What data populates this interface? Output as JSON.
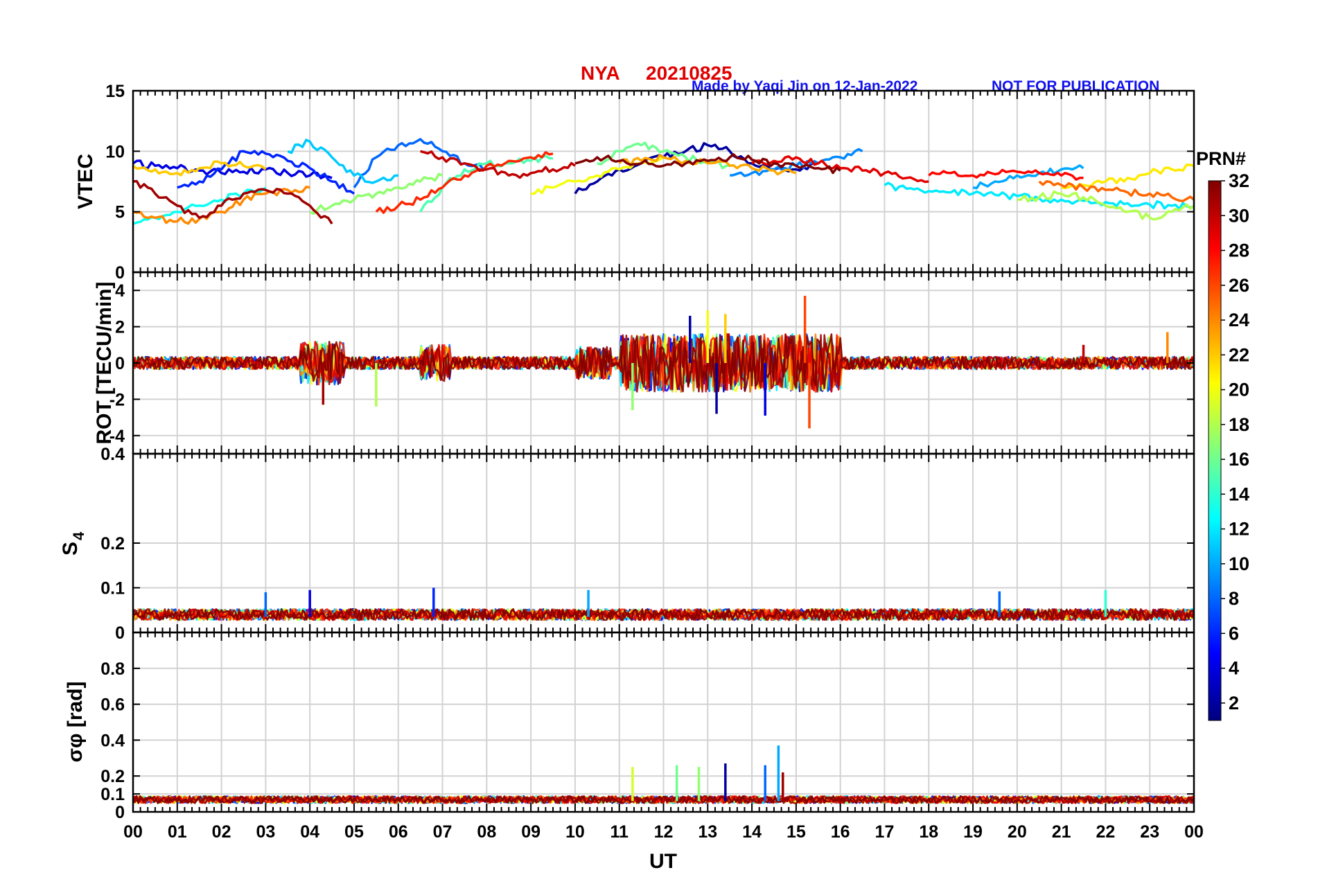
{
  "chart_data": {
    "type": "line",
    "station": "NYA",
    "date": "20210825",
    "credit": "Made by Yaqi Jin on 12-Jan-2022",
    "notice": "NOT FOR PUBLICATION",
    "xlabel": "UT",
    "xticks": [
      "00",
      "01",
      "02",
      "03",
      "04",
      "05",
      "06",
      "07",
      "08",
      "09",
      "10",
      "11",
      "12",
      "13",
      "14",
      "15",
      "16",
      "17",
      "18",
      "19",
      "20",
      "21",
      "22",
      "23",
      "00"
    ],
    "xlim": [
      0,
      24
    ],
    "colorbar": {
      "label": "PRN#",
      "ticks": [
        "2",
        "4",
        "6",
        "8",
        "10",
        "12",
        "14",
        "16",
        "18",
        "20",
        "22",
        "24",
        "26",
        "28",
        "30",
        "32"
      ],
      "range": [
        1,
        32
      ]
    },
    "panels": [
      {
        "id": "vtec",
        "ylabel": "VTEC",
        "ylim": [
          0,
          15
        ],
        "yticks": [
          0,
          5,
          10,
          15
        ],
        "ytick_labels": [
          "0",
          "5",
          "10",
          "15"
        ],
        "series": [
          {
            "prn": 2,
            "x": [
              10,
              10.5,
              11,
              11.5,
              12,
              12.5,
              13,
              13.5,
              14,
              14.5,
              15,
              15.5
            ],
            "y": [
              6.5,
              7.5,
              8.5,
              9,
              9.5,
              10,
              10.5,
              10,
              9,
              8.5,
              8.5,
              9
            ]
          },
          {
            "prn": 4,
            "x": [
              0,
              0.5,
              1,
              1.5,
              2,
              2.5,
              3,
              3.5,
              4,
              4.5
            ],
            "y": [
              9,
              8.8,
              8.6,
              8.4,
              8.2,
              8.3,
              8.5,
              8.2,
              8,
              7.8
            ]
          },
          {
            "prn": 6,
            "x": [
              1,
              1.5,
              2,
              2.5,
              3,
              3.5,
              4,
              4.5,
              5
            ],
            "y": [
              7,
              7.5,
              8.5,
              10,
              9.8,
              9.2,
              8.6,
              7.5,
              6.5
            ]
          },
          {
            "prn": 8,
            "x": [
              5,
              5.5,
              6,
              6.5,
              7,
              7.5,
              8
            ],
            "y": [
              7,
              9.5,
              10.5,
              11,
              10,
              9,
              8.5
            ]
          },
          {
            "prn": 9,
            "x": [
              13.5,
              14,
              14.5,
              15,
              15.5,
              16,
              16.5
            ],
            "y": [
              8,
              8.2,
              8.5,
              8.8,
              9,
              9.5,
              10
            ]
          },
          {
            "prn": 10,
            "x": [
              19,
              19.5,
              20,
              20.5,
              21,
              21.5
            ],
            "y": [
              7,
              7.5,
              8,
              8.2,
              8.5,
              8.6
            ]
          },
          {
            "prn": 11,
            "x": [
              3.5,
              4,
              4.5,
              5,
              5.5,
              6
            ],
            "y": [
              10,
              10.8,
              9.5,
              8,
              7.5,
              8
            ]
          },
          {
            "prn": 12,
            "x": [
              17,
              17.5,
              18,
              18.5,
              19,
              19.5,
              20,
              20.5,
              21,
              21.5,
              22,
              22.5,
              23,
              23.5,
              24
            ],
            "y": [
              7.2,
              6.9,
              6.7,
              6.6,
              6.5,
              6.4,
              6.3,
              6.1,
              6,
              5.9,
              5.8,
              5.7,
              5.6,
              5.5,
              5.4
            ]
          },
          {
            "prn": 13,
            "x": [
              0,
              0.5,
              1,
              1.5,
              2,
              2.5,
              3
            ],
            "y": [
              4,
              4.5,
              5,
              5.5,
              6,
              6.5,
              7
            ]
          },
          {
            "prn": 15,
            "x": [
              6.5,
              7,
              7.5,
              8,
              8.5,
              9,
              9.5
            ],
            "y": [
              5,
              7,
              8.5,
              9,
              9,
              9.2,
              9.4
            ]
          },
          {
            "prn": 16,
            "x": [
              10.5,
              11,
              11.5,
              12,
              12.5,
              13,
              13.5
            ],
            "y": [
              9,
              10,
              10.5,
              10,
              9.5,
              9,
              8.8
            ]
          },
          {
            "prn": 17,
            "x": [
              4,
              4.5,
              5,
              5.5,
              6,
              6.5,
              7
            ],
            "y": [
              5,
              5.5,
              6,
              6.5,
              7,
              7.5,
              8
            ]
          },
          {
            "prn": 18,
            "x": [
              20,
              20.5,
              21,
              21.5,
              22,
              22.5,
              23,
              23.5,
              24
            ],
            "y": [
              6,
              6.2,
              6.5,
              6.2,
              5.5,
              5,
              4.5,
              5,
              5.5
            ]
          },
          {
            "prn": 20,
            "x": [
              9,
              9.5,
              10,
              10.5,
              11,
              11.5,
              12
            ],
            "y": [
              6.5,
              7,
              7.5,
              8,
              8.5,
              9,
              9.5
            ]
          },
          {
            "prn": 21,
            "x": [
              21,
              21.5,
              22,
              22.5,
              23,
              23.5,
              24
            ],
            "y": [
              7,
              7.2,
              7.5,
              7.8,
              8.2,
              8.5,
              8.8
            ]
          },
          {
            "prn": 22,
            "x": [
              0,
              0.5,
              1,
              1.5,
              2,
              2.5,
              3
            ],
            "y": [
              8.8,
              8.5,
              8.2,
              8.6,
              9,
              8.8,
              8.5
            ]
          },
          {
            "prn": 23,
            "x": [
              11,
              11.5,
              12,
              12.5,
              13,
              13.5,
              14,
              14.5,
              15
            ],
            "y": [
              9,
              9.2,
              9.5,
              9.2,
              9,
              8.8,
              8.6,
              8.4,
              8.2
            ]
          },
          {
            "prn": 24,
            "x": [
              0,
              0.5,
              1,
              1.5,
              2,
              2.5,
              3,
              3.5,
              4
            ],
            "y": [
              5,
              4.5,
              4.2,
              4.4,
              5,
              6,
              6.5,
              6.8,
              7
            ]
          },
          {
            "prn": 25,
            "x": [
              20.5,
              21,
              21.5,
              22,
              22.5,
              23,
              23.5,
              24
            ],
            "y": [
              7.5,
              7.2,
              7,
              6.8,
              6.6,
              6.5,
              6.2,
              6
            ]
          },
          {
            "prn": 27,
            "x": [
              5.5,
              6,
              6.5,
              7,
              7.5,
              8,
              8.5,
              9,
              9.5
            ],
            "y": [
              5,
              5.5,
              6,
              7,
              8,
              8.8,
              9.2,
              9.5,
              9.8
            ]
          },
          {
            "prn": 28,
            "x": [
              18,
              18.5,
              19,
              19.5,
              20,
              20.5,
              21,
              21.5
            ],
            "y": [
              8,
              8.2,
              8,
              8.1,
              8.3,
              8.2,
              8,
              7.8
            ]
          },
          {
            "prn": 29,
            "x": [
              14,
              14.5,
              15,
              15.5,
              16,
              16.5,
              17,
              17.5,
              18
            ],
            "y": [
              9,
              9.2,
              9.5,
              9,
              8.6,
              8.4,
              8.2,
              7.8,
              7.5
            ]
          },
          {
            "prn": 30,
            "x": [
              6.5,
              7,
              7.5,
              8,
              8.5,
              9,
              9.5,
              10
            ],
            "y": [
              10,
              9.5,
              9,
              8.5,
              8,
              8.2,
              8.5,
              8.8
            ]
          },
          {
            "prn": 31,
            "x": [
              0,
              0.5,
              1,
              1.5,
              2,
              2.5,
              3,
              3.5,
              4,
              4.5
            ],
            "y": [
              7.5,
              6.5,
              5.5,
              4.5,
              5.5,
              6.5,
              6.8,
              6.5,
              5.5,
              4
            ]
          },
          {
            "prn": 32,
            "x": [
              10,
              10.5,
              11,
              11.5,
              12,
              12.5,
              13,
              13.5,
              14,
              14.5,
              15,
              15.5,
              16
            ],
            "y": [
              9,
              9.5,
              9.2,
              9,
              8.8,
              9,
              9.2,
              9.5,
              9.3,
              9,
              8.8,
              8.6,
              8.4
            ]
          }
        ]
      },
      {
        "id": "rot",
        "ylabel": "ROT [TECU/min]",
        "ylim": [
          -5,
          5
        ],
        "yticks": [
          -4,
          -2,
          0,
          2,
          4
        ],
        "ytick_labels": [
          "-4",
          "-2",
          "0",
          "2",
          "4"
        ],
        "noise": {
          "base_amplitude": 0.35,
          "active_windows": [
            [
              3.8,
              4.8,
              1.2
            ],
            [
              6.5,
              7.2,
              1.0
            ],
            [
              10.0,
              10.8,
              0.9
            ],
            [
              11.0,
              16.0,
              1.6
            ]
          ]
        },
        "spikes": [
          {
            "prn": 2,
            "x": 12.6,
            "y": 2.6
          },
          {
            "prn": 2,
            "x": 13.2,
            "y": -2.8
          },
          {
            "prn": 4,
            "x": 14.3,
            "y": -2.9
          },
          {
            "prn": 20,
            "x": 13.0,
            "y": 2.9
          },
          {
            "prn": 22,
            "x": 13.4,
            "y": 2.7
          },
          {
            "prn": 17,
            "x": 11.3,
            "y": -2.6
          },
          {
            "prn": 18,
            "x": 5.5,
            "y": -2.4
          },
          {
            "prn": 26,
            "x": 15.2,
            "y": 3.7
          },
          {
            "prn": 26,
            "x": 15.3,
            "y": -3.6
          },
          {
            "prn": 31,
            "x": 4.3,
            "y": -2.3
          },
          {
            "prn": 24,
            "x": 23.4,
            "y": 1.7
          },
          {
            "prn": 30,
            "x": 21.5,
            "y": 1.0
          }
        ]
      },
      {
        "id": "s4",
        "ylabel": "S4",
        "ylim": [
          0,
          0.4
        ],
        "yticks": [
          0,
          0.1,
          0.2,
          0.4
        ],
        "ytick_labels": [
          "0",
          "0.1",
          "0.2",
          "0.4"
        ],
        "noise": {
          "base_level": 0.035,
          "base_amplitude": 0.025
        },
        "spikes": [
          {
            "prn": 8,
            "x": 3.0,
            "y": 0.09
          },
          {
            "prn": 4,
            "x": 4.0,
            "y": 0.095
          },
          {
            "prn": 6,
            "x": 6.8,
            "y": 0.1
          },
          {
            "prn": 10,
            "x": 10.3,
            "y": 0.095
          },
          {
            "prn": 8,
            "x": 19.6,
            "y": 0.092
          },
          {
            "prn": 14,
            "x": 22.0,
            "y": 0.095
          }
        ]
      },
      {
        "id": "sigma_phi",
        "ylabel": "σφ [rad]",
        "ylim": [
          0,
          1
        ],
        "yticks": [
          0,
          0.1,
          0.2,
          0.4,
          0.6,
          0.8
        ],
        "ytick_labels": [
          "0",
          "0.1",
          "0.2",
          "0.4",
          "0.6",
          "0.8"
        ],
        "noise": {
          "base_level": 0.06,
          "base_amplitude": 0.04
        },
        "spikes": [
          {
            "prn": 19,
            "x": 11.3,
            "y": 0.25
          },
          {
            "prn": 16,
            "x": 12.3,
            "y": 0.26
          },
          {
            "prn": 17,
            "x": 12.8,
            "y": 0.25
          },
          {
            "prn": 2,
            "x": 13.4,
            "y": 0.27
          },
          {
            "prn": 8,
            "x": 14.3,
            "y": 0.26
          },
          {
            "prn": 10,
            "x": 14.6,
            "y": 0.37
          },
          {
            "prn": 31,
            "x": 14.7,
            "y": 0.22
          }
        ]
      }
    ]
  }
}
